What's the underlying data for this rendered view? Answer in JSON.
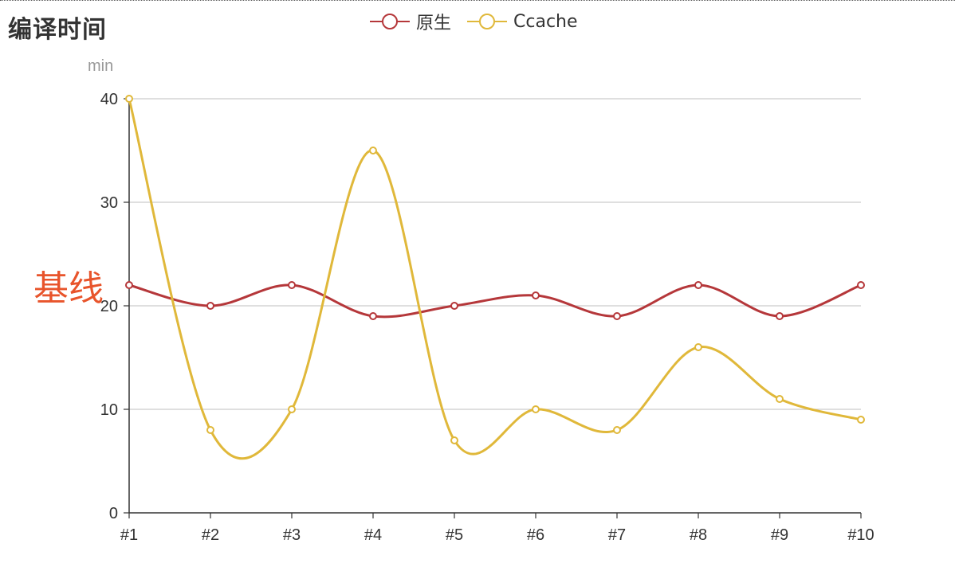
{
  "title": "编译时间",
  "annotation": "基线",
  "colors": {
    "native": "#b5373a",
    "ccache": "#e0b83a",
    "grid": "#cccccc",
    "axis": "#333333",
    "annotation": "#e8542b"
  },
  "chart_data": {
    "type": "line",
    "smooth": true,
    "title": "编译时间",
    "ylabel": "min",
    "xlabel": "",
    "ylim": [
      0,
      40
    ],
    "yticks": [
      0,
      10,
      20,
      30,
      40
    ],
    "grid": true,
    "legend_position": "top-center",
    "categories": [
      "#1",
      "#2",
      "#3",
      "#4",
      "#5",
      "#6",
      "#7",
      "#8",
      "#9",
      "#10"
    ],
    "series": [
      {
        "name": "原生",
        "color": "#b5373a",
        "values": [
          22,
          20,
          22,
          19,
          20,
          21,
          19,
          22,
          19,
          22
        ]
      },
      {
        "name": "Ccache",
        "color": "#e0b83a",
        "values": [
          40,
          8,
          10,
          35,
          7,
          10,
          8,
          16,
          11,
          9
        ]
      }
    ]
  }
}
